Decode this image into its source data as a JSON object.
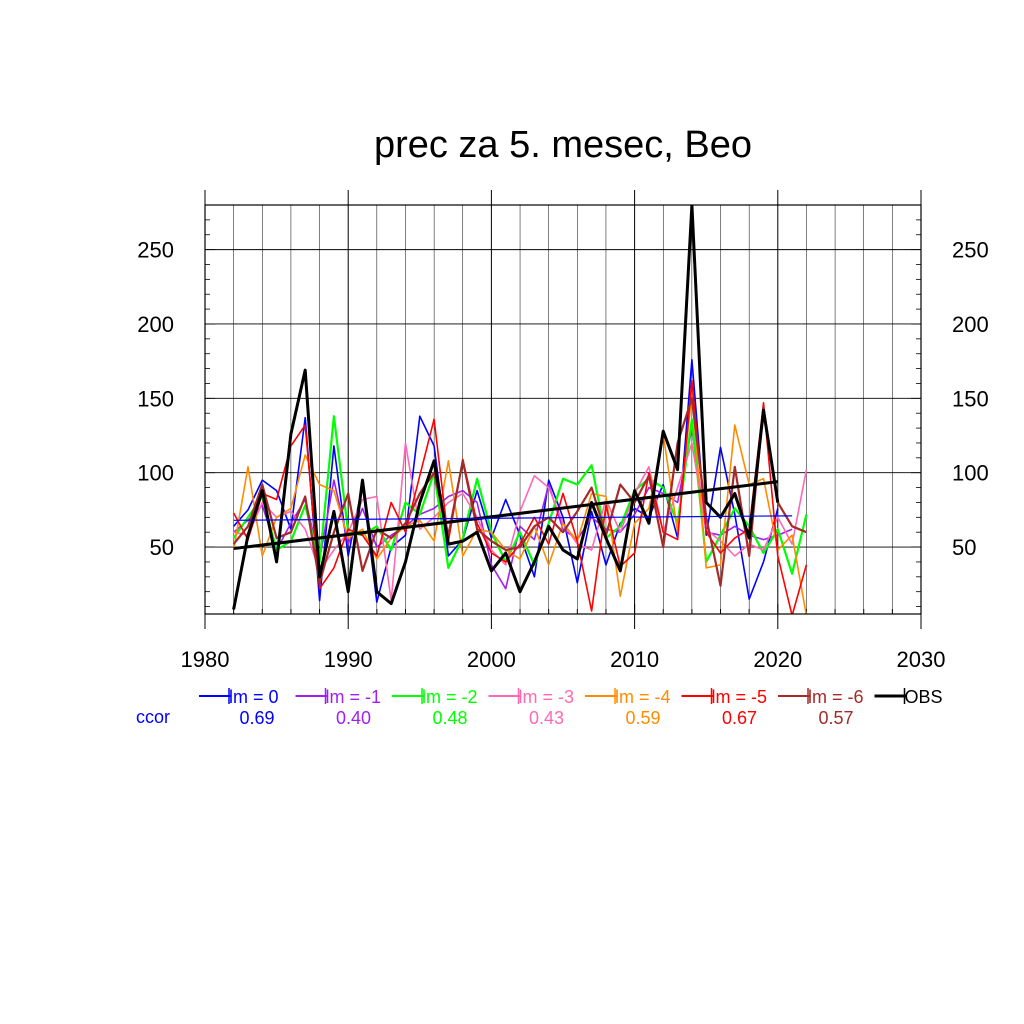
{
  "chart_data": {
    "type": "line",
    "title": "prec za 5. mesec, Beo",
    "xlim": [
      1980,
      2030
    ],
    "ylim": [
      5,
      280
    ],
    "x_ticks": [
      1980,
      1990,
      2000,
      2010,
      2020,
      2030
    ],
    "y_ticks": [
      50,
      100,
      150,
      200,
      250
    ],
    "grid": true,
    "legend": {
      "placement": "bottom",
      "ccor_label": "ccor"
    },
    "x": [
      1982,
      1983,
      1984,
      1985,
      1986,
      1987,
      1988,
      1989,
      1990,
      1991,
      1992,
      1993,
      1994,
      1995,
      1996,
      1997,
      1998,
      1999,
      2000,
      2001,
      2002,
      2003,
      2004,
      2005,
      2006,
      2007,
      2008,
      2009,
      2010,
      2011,
      2012,
      2013,
      2014,
      2015,
      2016,
      2017,
      2018,
      2019,
      2020,
      2021,
      2022
    ],
    "series": [
      {
        "name": "lm = 0",
        "ccor": "0.69",
        "color": "#0000ff",
        "width": 1.6,
        "values": [
          64,
          75,
          95,
          88,
          62,
          137,
          14,
          118,
          44,
          92,
          13,
          50,
          58,
          138,
          118,
          44,
          55,
          88,
          56,
          82,
          58,
          30,
          95,
          70,
          26,
          74,
          38,
          66,
          76,
          70,
          92,
          56,
          176,
          58,
          117,
          72,
          15,
          40,
          76,
          null,
          null
        ]
      },
      {
        "name": "lm = -1",
        "ccor": "0.40",
        "color": "#a020f0",
        "width": 1.6,
        "values": [
          60,
          68,
          78,
          48,
          66,
          82,
          42,
          95,
          52,
          76,
          50,
          58,
          64,
          72,
          76,
          84,
          88,
          80,
          38,
          22,
          64,
          55,
          92,
          62,
          55,
          70,
          62,
          60,
          72,
          90,
          86,
          80,
          130,
          60,
          58,
          64,
          58,
          55,
          58,
          62,
          null
        ]
      },
      {
        "name": "lm = -2",
        "ccor": "0.48",
        "color": "#00ff00",
        "width": 2.2,
        "values": [
          56,
          70,
          84,
          48,
          54,
          78,
          40,
          138,
          60,
          58,
          64,
          48,
          80,
          72,
          100,
          36,
          56,
          96,
          60,
          40,
          60,
          38,
          66,
          96,
          92,
          105,
          56,
          64,
          88,
          96,
          90,
          66,
          136,
          40,
          58,
          76,
          64,
          46,
          62,
          32,
          72
        ]
      },
      {
        "name": "lm = -3",
        "ccor": "0.43",
        "color": "#ff69b4",
        "width": 1.6,
        "values": [
          60,
          58,
          80,
          70,
          74,
          62,
          34,
          48,
          60,
          82,
          84,
          14,
          120,
          62,
          70,
          80,
          86,
          70,
          48,
          38,
          74,
          98,
          90,
          66,
          52,
          48,
          82,
          60,
          86,
          104,
          60,
          90,
          120,
          62,
          54,
          44,
          52,
          48,
          70,
          52,
          102
        ]
      },
      {
        "name": "lm = -4",
        "ccor": "0.59",
        "color": "#ff8c00",
        "width": 1.6,
        "values": [
          48,
          104,
          44,
          70,
          76,
          112,
          92,
          88,
          56,
          62,
          42,
          56,
          64,
          68,
          54,
          108,
          44,
          62,
          60,
          48,
          42,
          64,
          38,
          66,
          54,
          86,
          84,
          17,
          66,
          76,
          126,
          60,
          154,
          36,
          38,
          132,
          92,
          96,
          48,
          58,
          4
        ]
      },
      {
        "name": "lm = -5",
        "ccor": "0.67",
        "color": "#ff0000",
        "width": 1.6,
        "values": [
          73,
          55,
          86,
          82,
          118,
          132,
          22,
          36,
          62,
          58,
          44,
          80,
          60,
          98,
          136,
          54,
          109,
          66,
          46,
          40,
          52,
          70,
          52,
          86,
          54,
          7,
          78,
          37,
          46,
          100,
          60,
          55,
          162,
          60,
          46,
          56,
          62,
          147,
          44,
          4,
          38
        ]
      },
      {
        "name": "lm = -6",
        "ccor": "0.57",
        "color": "#a52a2a",
        "width": 2.2,
        "values": [
          52,
          64,
          92,
          56,
          60,
          84,
          26,
          60,
          86,
          34,
          62,
          56,
          66,
          86,
          100,
          58,
          108,
          62,
          54,
          48,
          50,
          64,
          70,
          60,
          74,
          90,
          58,
          92,
          80,
          98,
          50,
          120,
          150,
          70,
          24,
          104,
          44,
          144,
          80,
          64,
          60
        ]
      },
      {
        "name": "OBS",
        "ccor": "",
        "color": "#000000",
        "width": 3.0,
        "values": [
          8,
          58,
          88,
          40,
          126,
          169,
          30,
          74,
          20,
          95,
          20,
          12,
          40,
          80,
          108,
          52,
          54,
          60,
          34,
          46,
          20,
          40,
          64,
          48,
          42,
          80,
          56,
          34,
          88,
          66,
          128,
          102,
          280,
          80,
          70,
          86,
          56,
          142,
          80,
          null,
          null
        ]
      }
    ],
    "trend": {
      "name": "OBS trend",
      "x": [
        1982,
        2020
      ],
      "y": [
        49,
        94
      ]
    }
  }
}
